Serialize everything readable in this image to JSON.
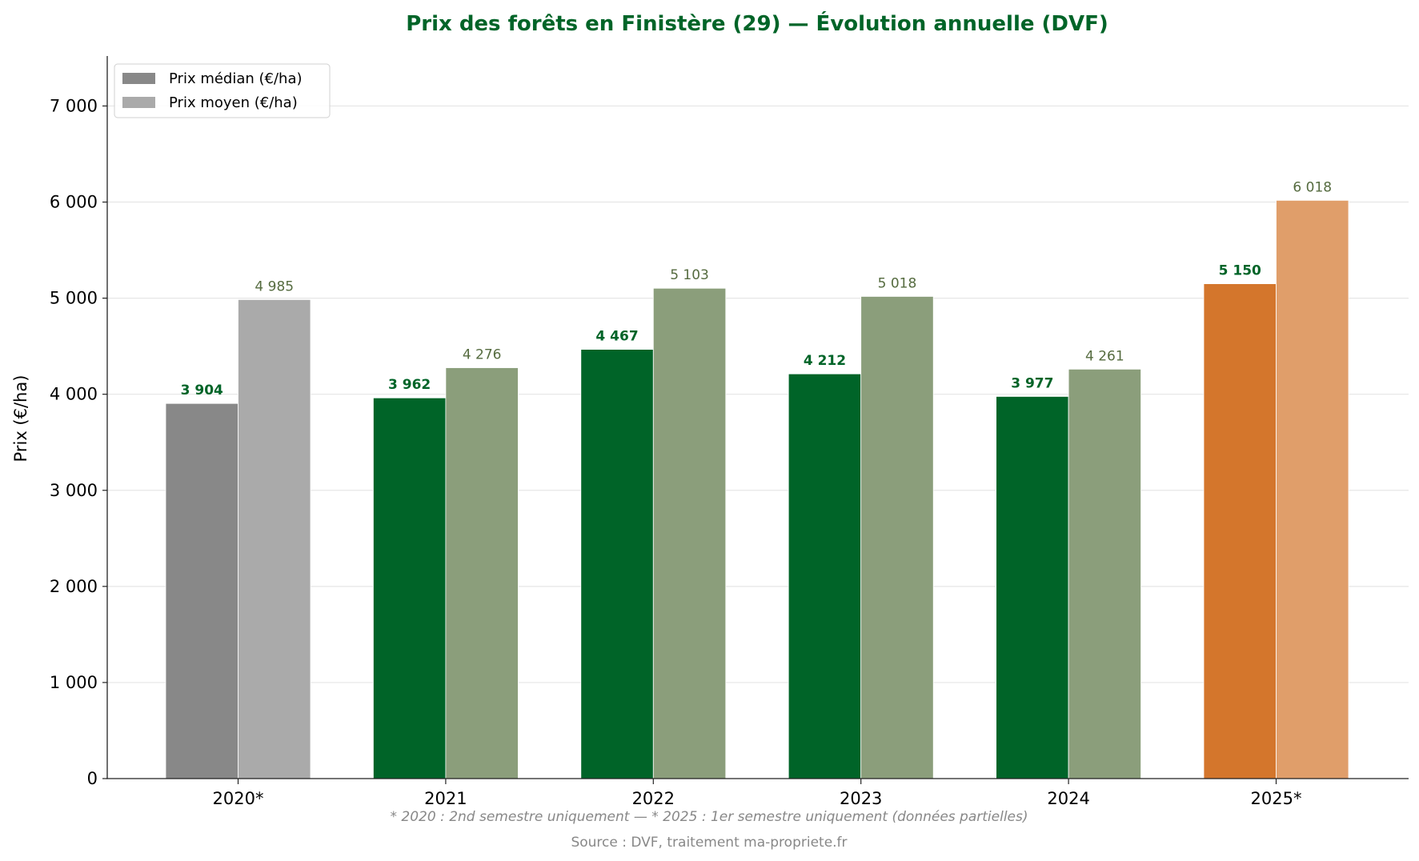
{
  "chart_data": {
    "type": "bar",
    "title": "Prix des forêts en Finistère (29) — Évolution annuelle (DVF)",
    "xlabel": "",
    "ylabel": "Prix (€/ha)",
    "ylim": [
      0,
      7520
    ],
    "yticks": [
      0,
      1000,
      2000,
      3000,
      4000,
      5000,
      6000,
      7000
    ],
    "ytick_labels": [
      "0",
      "1 000",
      "2 000",
      "3 000",
      "4 000",
      "5 000",
      "6 000",
      "7 000"
    ],
    "grid": "horizontal",
    "legend_position": "top-left",
    "categories": [
      "2020*",
      "2021",
      "2022",
      "2023",
      "2024",
      "2025*"
    ],
    "series": [
      {
        "name": "Prix médian (€/ha)",
        "values": [
          3904,
          3962,
          4467,
          4212,
          3977,
          5150
        ],
        "labels": [
          "3 904",
          "3 962",
          "4 467",
          "4 212",
          "3 977",
          "5 150"
        ],
        "colors": [
          "#888888",
          "#006428",
          "#006428",
          "#006428",
          "#006428",
          "#d4762c"
        ]
      },
      {
        "name": "Prix moyen (€/ha)",
        "values": [
          4985,
          4276,
          5103,
          5018,
          4261,
          6018
        ],
        "labels": [
          "4 985",
          "4 276",
          "5 103",
          "5 018",
          "4 261",
          "6 018"
        ],
        "colors": [
          "#aaaaaa",
          "#8b9e7b",
          "#8b9e7b",
          "#8b9e7b",
          "#8b9e7b",
          "#e09e6a"
        ]
      }
    ],
    "legend_colors": [
      "#888888",
      "#aaaaaa"
    ],
    "median_label_color": "#006428",
    "mean_label_color": "#556b3f",
    "title_color": "#006428",
    "footnote": "* 2020 : 2nd semestre uniquement — * 2025 : 1er semestre uniquement (données partielles)",
    "source": "Source : DVF, traitement ma-propriete.fr"
  }
}
